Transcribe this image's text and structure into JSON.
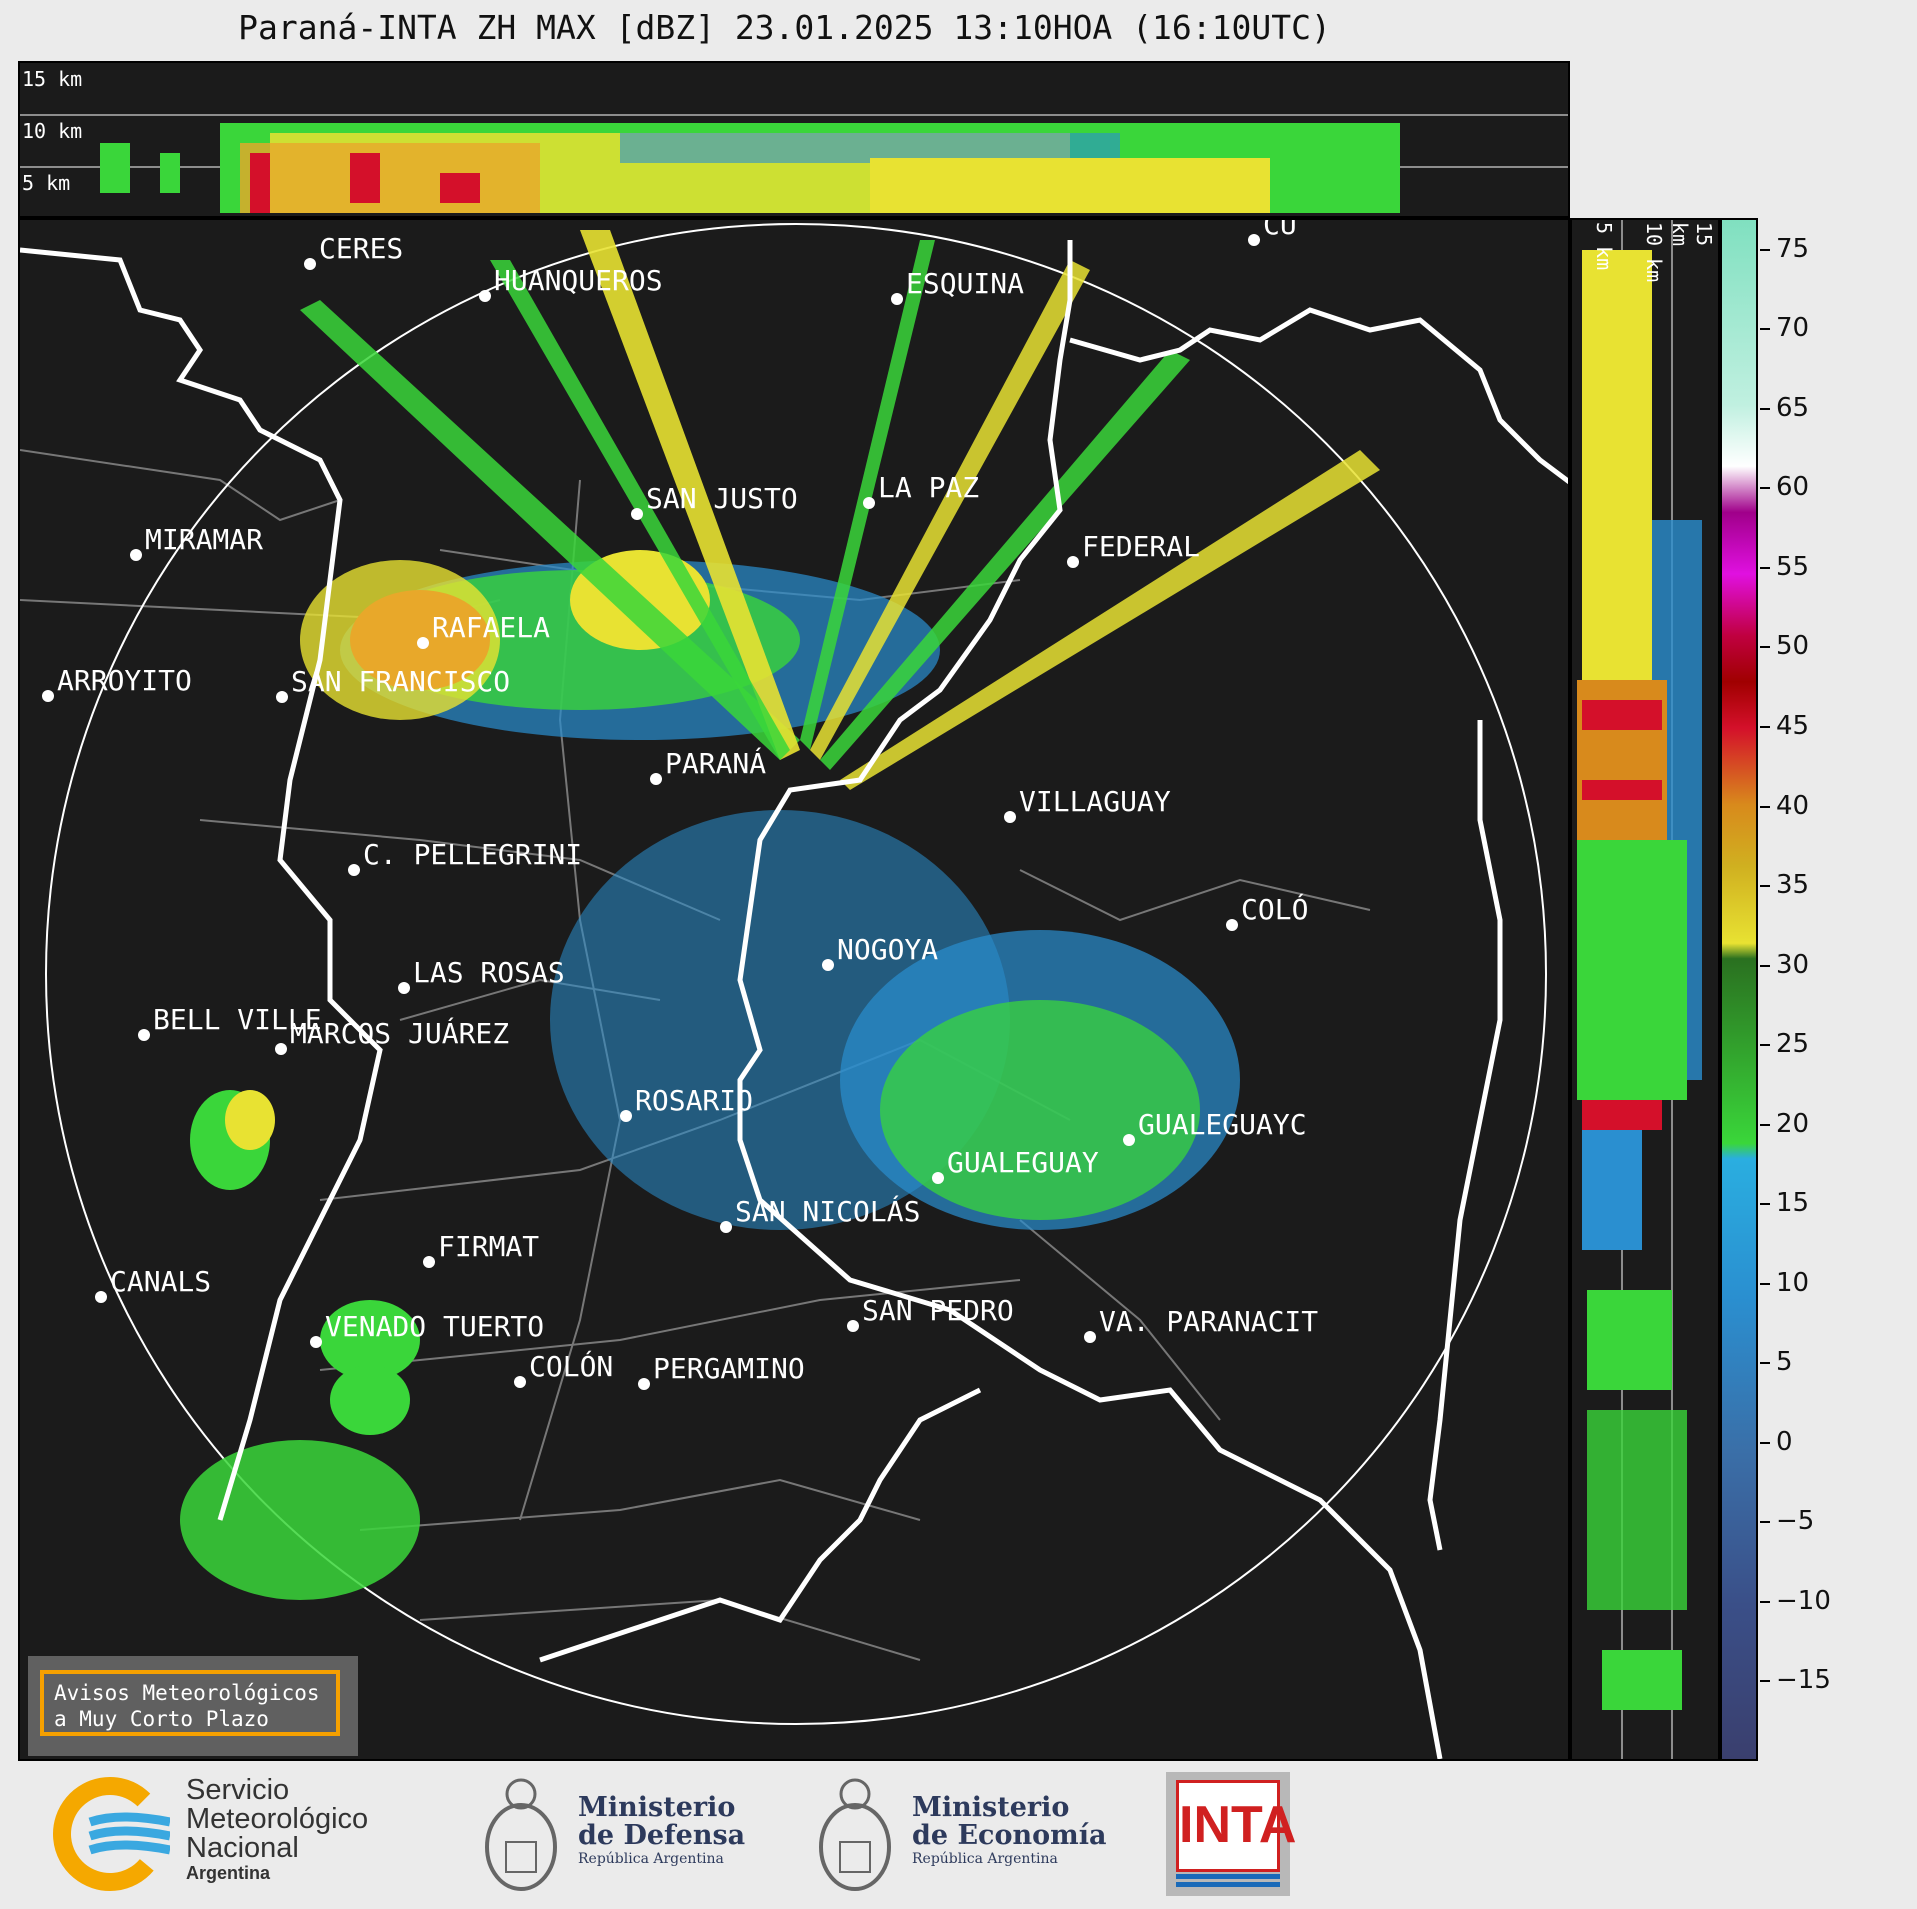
{
  "title": "Paraná-INTA ZH MAX [dBZ] 23.01.2025 13:10HOA (16:10UTC)",
  "top_panel": {
    "height_labels": [
      "15 km",
      "10 km",
      "5 km"
    ]
  },
  "side_panel": {
    "height_labels": [
      "5 km",
      "10 km",
      "15 km"
    ]
  },
  "colorbar": {
    "ticks": [
      "75",
      "70",
      "65",
      "60",
      "55",
      "50",
      "45",
      "40",
      "35",
      "30",
      "25",
      "20",
      "15",
      "10",
      "5",
      "0",
      "−5",
      "−10",
      "−15"
    ],
    "range": [
      -20,
      77
    ],
    "colors": {
      "low": "#3a3f6e",
      "blue": "#2a8fd0",
      "green": "#3ad63a",
      "yellow": "#e8e232",
      "orange": "#d88a1c",
      "red": "#d4102a",
      "magenta": "#e010e0",
      "white": "#ffffff",
      "teal": "#80e0c0"
    }
  },
  "cities": [
    {
      "name": "CERES"
    },
    {
      "name": "HUANQUEROS"
    },
    {
      "name": "ESQUINA"
    },
    {
      "name": "CU"
    },
    {
      "name": "SAN JUSTO"
    },
    {
      "name": "LA PAZ"
    },
    {
      "name": "MIRAMAR"
    },
    {
      "name": "FEDERAL"
    },
    {
      "name": "RAFAELA"
    },
    {
      "name": "ARROYITO"
    },
    {
      "name": "SAN FRANCISCO"
    },
    {
      "name": "PARANÁ"
    },
    {
      "name": "VILLAGUAY"
    },
    {
      "name": "C. PELLEGRINI"
    },
    {
      "name": "COLÓ"
    },
    {
      "name": "NOGOYA"
    },
    {
      "name": "LAS ROSAS"
    },
    {
      "name": "BELL VILLE"
    },
    {
      "name": "MARCOS JUÁREZ"
    },
    {
      "name": "ROSARIO"
    },
    {
      "name": "GUALEGUAYC"
    },
    {
      "name": "GUALEGUAY"
    },
    {
      "name": "SAN NICOLÁS"
    },
    {
      "name": "FIRMAT"
    },
    {
      "name": "CANALS"
    },
    {
      "name": "SAN PEDRO"
    },
    {
      "name": "VA. PARANACIT"
    },
    {
      "name": "VENADO TUERTO"
    },
    {
      "name": "COLÓN"
    },
    {
      "name": "PERGAMINO"
    }
  ],
  "warning_box": {
    "line1": "Avisos Meteorológicos",
    "line2": "a Muy Corto Plazo"
  },
  "logos": {
    "smn": {
      "line1": "Servicio",
      "line2": "Meteorológico",
      "line3": "Nacional",
      "line4": "Argentina"
    },
    "defensa": {
      "line1": "Ministerio",
      "line2": "de Defensa",
      "line3": "República Argentina"
    },
    "economia": {
      "line1": "Ministerio",
      "line2": "de Economía",
      "line3": "República Argentina"
    },
    "inta": {
      "text": "INTA"
    }
  }
}
